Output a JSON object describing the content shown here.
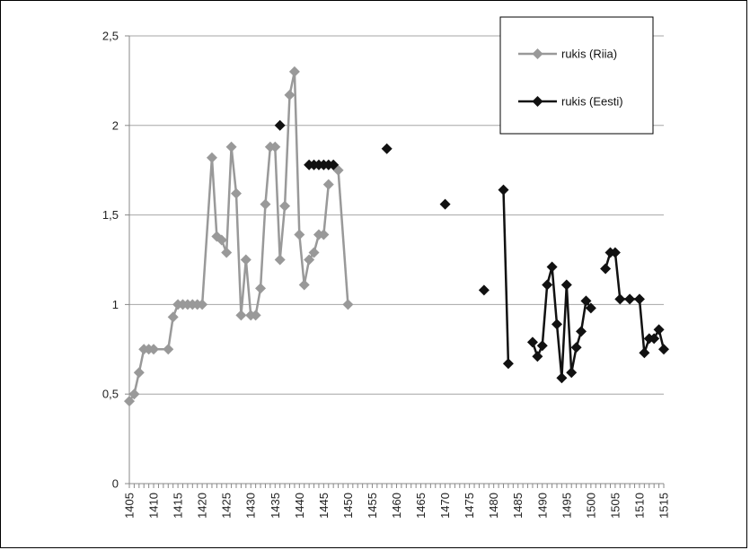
{
  "chart_data": {
    "type": "line",
    "title": "",
    "xlabel": "",
    "ylabel": "",
    "xlim": [
      1405,
      1515
    ],
    "ylim": [
      0,
      2.5
    ],
    "x_ticks": [
      "1405",
      "1410",
      "1415",
      "1420",
      "1425",
      "1430",
      "1435",
      "1440",
      "1445",
      "1450",
      "1455",
      "1460",
      "1465",
      "1470",
      "1475",
      "1480",
      "1485",
      "1490",
      "1495",
      "1500",
      "1505",
      "1510",
      "1515"
    ],
    "y_ticks": [
      "0",
      "0,5",
      "1",
      "1,5",
      "2",
      "2,5"
    ],
    "grid": "horizontal",
    "legend_position": "top-right",
    "series": [
      {
        "name": "rukis (Riia)",
        "color": "#999999",
        "marker": "diamond",
        "x": [
          1405,
          1406,
          1407,
          1408,
          1409,
          1410,
          1413,
          1414,
          1415,
          1416,
          1417,
          1418,
          1419,
          1420,
          1422,
          1423,
          1424,
          1425,
          1426,
          1427,
          1428,
          1429,
          1430,
          1431,
          1432,
          1433,
          1434,
          1435,
          1436,
          1437,
          1438,
          1439,
          1440,
          1441,
          1442,
          1443,
          1444,
          1445,
          1446,
          1447,
          1448,
          1450
        ],
        "y": [
          0.46,
          0.5,
          0.62,
          0.75,
          0.75,
          0.75,
          0.75,
          0.93,
          1.0,
          1.0,
          1.0,
          1.0,
          1.0,
          1.0,
          1.82,
          1.38,
          1.36,
          1.29,
          1.88,
          1.62,
          0.94,
          1.25,
          0.94,
          0.94,
          1.09,
          1.56,
          1.88,
          1.88,
          1.25,
          1.55,
          2.17,
          2.3,
          1.39,
          1.11,
          1.25,
          1.29,
          1.39,
          1.39,
          1.67,
          null,
          1.75,
          1.0
        ]
      },
      {
        "name": "rukis (Eesti)",
        "color": "#111111",
        "marker": "diamond",
        "x": [
          1436,
          1442,
          1443,
          1444,
          1445,
          1446,
          1447,
          1458,
          1470,
          1478,
          1482,
          1483,
          1488,
          1489,
          1490,
          1491,
          1492,
          1493,
          1494,
          1495,
          1496,
          1497,
          1498,
          1499,
          1500,
          1503,
          1504,
          1505,
          1506,
          1508,
          1510,
          1511,
          1512,
          1513,
          1514,
          1515
        ],
        "y": [
          2.0,
          1.78,
          1.78,
          1.78,
          1.78,
          1.78,
          1.78,
          1.87,
          1.56,
          1.08,
          1.64,
          0.67,
          0.79,
          0.71,
          0.77,
          1.11,
          1.21,
          0.89,
          0.59,
          1.11,
          0.62,
          0.76,
          0.85,
          1.02,
          0.98,
          1.2,
          1.29,
          1.29,
          1.03,
          1.03,
          1.03,
          0.73,
          0.81,
          0.81,
          0.86,
          0.75
        ],
        "connected_runs": [
          [
            0,
            0
          ],
          [
            1,
            6
          ],
          [
            7,
            7
          ],
          [
            8,
            8
          ],
          [
            9,
            9
          ],
          [
            10,
            11
          ],
          [
            12,
            24
          ],
          [
            25,
            35
          ]
        ]
      }
    ]
  }
}
